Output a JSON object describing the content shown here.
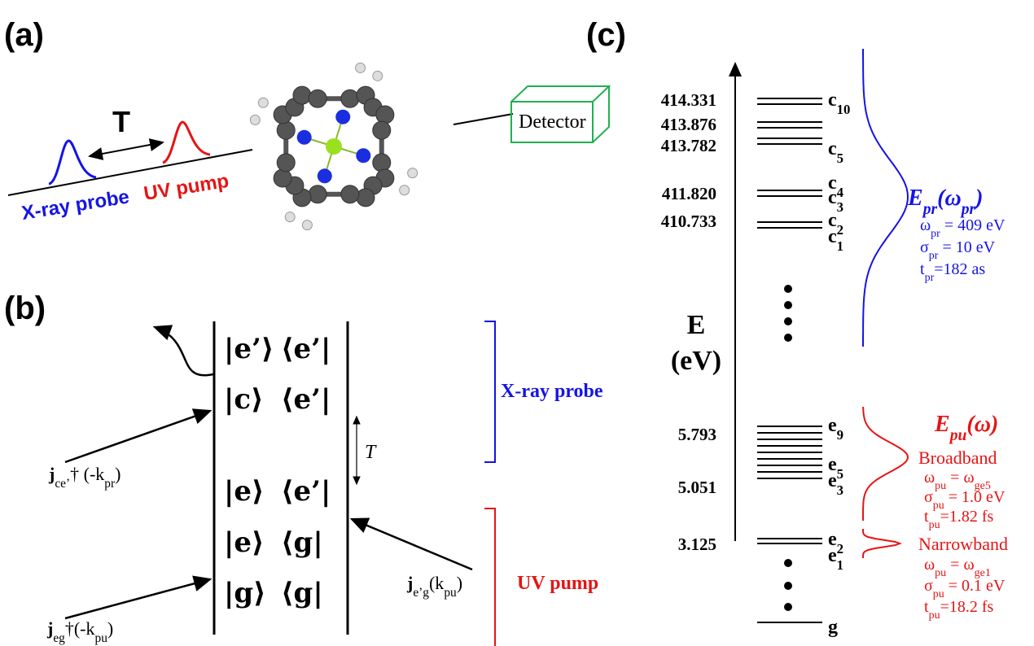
{
  "panel_a": {
    "label": "(a)",
    "delay": "T",
    "probe": "X-ray probe",
    "pump": "UV pump",
    "detector": "Detector"
  },
  "panel_b": {
    "label": "(b)",
    "rows": [
      {
        "ket": "|e’⟩",
        "bra": "⟨e’|"
      },
      {
        "ket": "|c⟩",
        "bra": "⟨e’|"
      },
      {
        "ket": "|e⟩",
        "bra": "⟨e’|"
      },
      {
        "ket": "|e⟩",
        "bra": "⟨g|"
      },
      {
        "ket": "|g⟩",
        "bra": "⟨g|"
      }
    ],
    "currents": [
      [
        "j",
        {
          "sub": "ce’"
        },
        "† (-k",
        {
          "sub": "pr"
        },
        ")"
      ],
      [
        "j",
        {
          "sub": "eg"
        },
        "†(-k",
        {
          "sub": "pu"
        },
        ")"
      ],
      [
        "j",
        {
          "sub": "e’g"
        },
        "(k",
        {
          "sub": "pu"
        },
        ")"
      ]
    ],
    "delay": "T",
    "probe": "X-ray probe",
    "pump": "UV pump"
  },
  "panel_c": {
    "label": "(c)",
    "axis": [
      "E",
      "(eV)"
    ],
    "energies": [
      "414.331",
      "413.876",
      "413.782",
      "411.820",
      "410.733",
      "5.793",
      "5.051",
      "3.125"
    ],
    "states": [
      {
        "name": "c",
        "index": "10"
      },
      {
        "name": "c",
        "index": "5"
      },
      {
        "name": "c",
        "index": "4"
      },
      {
        "name": "c",
        "index": "3"
      },
      {
        "name": "c",
        "index": "2"
      },
      {
        "name": "c",
        "index": "1"
      },
      {
        "name": "e",
        "index": "9"
      },
      {
        "name": "e",
        "index": "5"
      },
      {
        "name": "e",
        "index": "3"
      },
      {
        "name": "e",
        "index": "2"
      },
      {
        "name": "e",
        "index": "1"
      },
      {
        "name": "g"
      }
    ],
    "probe_field": [
      "E",
      {
        "sub": "pr"
      },
      "(ω",
      {
        "sub": "pr"
      },
      ")"
    ],
    "probe_params": [
      [
        "ω",
        {
          "sub": "pr"
        },
        " = 409 eV"
      ],
      [
        "σ",
        {
          "sub": "pr"
        },
        " = 10 eV"
      ],
      [
        "t",
        {
          "sub": "pr"
        },
        "=182 as"
      ]
    ],
    "pump_field": [
      "E",
      {
        "sub": "pu"
      },
      "(ω)"
    ],
    "broadband": {
      "title": "Broadband",
      "params": [
        [
          "ω",
          {
            "sub": "pu"
          },
          " = ω",
          {
            "sub": "ge5"
          }
        ],
        [
          "σ",
          {
            "sub": "pu"
          },
          " = 1.0 eV"
        ],
        [
          "t",
          {
            "sub": "pu"
          },
          "=1.82 fs"
        ]
      ]
    },
    "narrowband": {
      "title": "Narrowband",
      "params": [
        [
          "ω",
          {
            "sub": "pu"
          },
          " = ω",
          {
            "sub": "ge1"
          }
        ],
        [
          "σ",
          {
            "sub": "pu"
          },
          " = 0.1 eV"
        ],
        [
          "t",
          {
            "sub": "pu"
          },
          "=18.2 fs"
        ]
      ]
    }
  }
}
